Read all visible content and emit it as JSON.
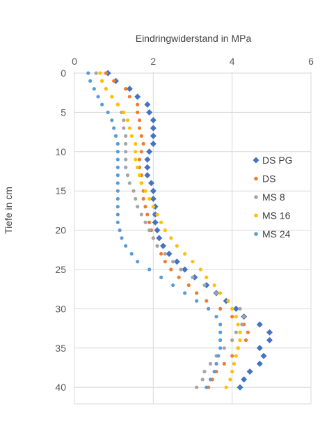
{
  "chart_data": {
    "type": "scatter",
    "title": "",
    "xlabel": "Eindringwiderstand in MPa",
    "ylabel": "Tiefe in cm",
    "x_axis_position": "top",
    "y_axis_inverted": true,
    "xlim": [
      0,
      6
    ],
    "ylim": [
      0,
      42
    ],
    "x_ticks": [
      "0",
      "2",
      "4",
      "6"
    ],
    "y_ticks": [
      "0",
      "5",
      "10",
      "15",
      "20",
      "25",
      "30",
      "35",
      "40"
    ],
    "grid": true,
    "legend_position": "right",
    "series": [
      {
        "name": "DS PG",
        "color": "#4472C4",
        "marker": "diamond",
        "x": [
          0.85,
          1.05,
          1.4,
          1.6,
          1.85,
          1.9,
          2.0,
          2.0,
          2.0,
          2.0,
          1.9,
          1.85,
          1.85,
          1.85,
          1.95,
          2.0,
          2.0,
          2.05,
          2.05,
          2.05,
          2.1,
          2.15,
          2.25,
          2.4,
          2.6,
          2.8,
          3.05,
          3.35,
          3.6,
          3.85,
          4.1,
          4.3,
          4.7,
          4.95,
          4.95,
          4.7,
          4.8,
          4.7,
          4.45,
          4.3,
          4.2
        ],
        "y": [
          0,
          1,
          2,
          3,
          4,
          5,
          6,
          7,
          8,
          9,
          10,
          11,
          12,
          13,
          14,
          15,
          16,
          17,
          18,
          19,
          20,
          21,
          22,
          23,
          24,
          25,
          26,
          27,
          28,
          29,
          30,
          31,
          32,
          33,
          34,
          35,
          36,
          37,
          38,
          39,
          40
        ]
      },
      {
        "name": "DS",
        "color": "#ED7D31",
        "marker": "circle",
        "x": [
          0.8,
          1.0,
          1.3,
          1.4,
          1.6,
          1.6,
          1.65,
          1.65,
          1.7,
          1.75,
          1.7,
          1.65,
          1.65,
          1.7,
          1.7,
          1.75,
          1.75,
          1.8,
          1.85,
          1.9,
          1.95,
          2.0,
          2.1,
          2.2,
          2.3,
          2.45,
          2.65,
          2.9,
          3.1,
          3.35,
          3.7,
          4.0,
          4.3,
          4.4,
          4.35,
          4.15,
          4.0,
          3.8,
          3.6,
          3.5,
          3.4
        ],
        "y": [
          0,
          1,
          2,
          3,
          4,
          5,
          6,
          7,
          8,
          9,
          10,
          11,
          12,
          13,
          14,
          15,
          16,
          17,
          18,
          19,
          20,
          21,
          22,
          23,
          24,
          25,
          26,
          27,
          28,
          29,
          30,
          31,
          32,
          33,
          34,
          35,
          36,
          37,
          38,
          39,
          40
        ]
      },
      {
        "name": "MS 8",
        "color": "#A5A5A5",
        "marker": "circle",
        "x": [
          0.55,
          0.7,
          0.8,
          0.95,
          1.1,
          1.2,
          1.25,
          1.25,
          1.3,
          1.3,
          1.3,
          1.3,
          1.3,
          1.35,
          1.4,
          1.5,
          1.55,
          1.6,
          1.7,
          1.8,
          1.9,
          2.0,
          2.1,
          2.3,
          2.5,
          2.7,
          3.0,
          3.3,
          3.6,
          3.9,
          4.2,
          4.3,
          4.25,
          4.1,
          4.0,
          3.8,
          3.6,
          3.45,
          3.3,
          3.25,
          3.1
        ],
        "y": [
          0,
          1,
          2,
          3,
          4,
          5,
          6,
          7,
          8,
          9,
          10,
          11,
          12,
          13,
          14,
          15,
          16,
          17,
          18,
          19,
          20,
          21,
          22,
          23,
          24,
          25,
          26,
          27,
          28,
          29,
          30,
          31,
          32,
          33,
          34,
          35,
          36,
          37,
          38,
          39,
          40
        ]
      },
      {
        "name": "MS 16",
        "color": "#FFC000",
        "marker": "circle",
        "x": [
          0.65,
          0.7,
          0.8,
          0.95,
          1.1,
          1.25,
          1.35,
          1.4,
          1.45,
          1.55,
          1.55,
          1.55,
          1.6,
          1.65,
          1.7,
          1.8,
          1.9,
          2.0,
          2.1,
          2.2,
          2.3,
          2.45,
          2.6,
          2.8,
          3.0,
          3.2,
          3.35,
          3.55,
          3.7,
          3.9,
          4.0,
          4.1,
          4.15,
          4.2,
          4.2,
          4.15,
          4.1,
          4.05,
          4.0,
          3.95,
          3.85
        ],
        "y": [
          0,
          1,
          2,
          3,
          4,
          5,
          6,
          7,
          8,
          9,
          10,
          11,
          12,
          13,
          14,
          15,
          16,
          17,
          18,
          19,
          20,
          21,
          22,
          23,
          24,
          25,
          26,
          27,
          28,
          29,
          30,
          31,
          32,
          33,
          34,
          35,
          36,
          37,
          38,
          39,
          40
        ]
      },
      {
        "name": "MS 24",
        "color": "#5B9BD5",
        "marker": "circle",
        "x": [
          0.35,
          0.4,
          0.5,
          0.6,
          0.7,
          0.85,
          0.95,
          1.0,
          1.05,
          1.1,
          1.1,
          1.1,
          1.1,
          1.1,
          1.1,
          1.1,
          1.1,
          1.1,
          1.1,
          1.1,
          1.15,
          1.2,
          1.3,
          1.45,
          1.6,
          1.9,
          2.2,
          2.5,
          2.8,
          3.1,
          3.4,
          3.6,
          3.7,
          3.7,
          3.7,
          3.7,
          3.65,
          3.6,
          3.55,
          3.45,
          3.35
        ],
        "y": [
          0,
          1,
          2,
          3,
          4,
          5,
          6,
          7,
          8,
          9,
          10,
          11,
          12,
          13,
          14,
          15,
          16,
          17,
          18,
          19,
          20,
          21,
          22,
          23,
          24,
          25,
          26,
          27,
          28,
          29,
          30,
          31,
          32,
          33,
          34,
          35,
          36,
          37,
          38,
          39,
          40
        ]
      }
    ]
  }
}
